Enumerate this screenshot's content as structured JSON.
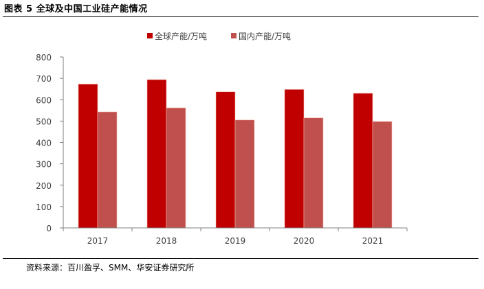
{
  "figure_title": "图表 5  全球及中国工业硅产能情况",
  "source_note": "资料来源：百川盈孚、SMM、华安证券研究所",
  "colors": {
    "series_global": "#c00000",
    "series_china": "#c0504d",
    "axis": "#7f7f7f",
    "text": "#404040"
  },
  "chart_data": {
    "type": "bar",
    "categories": [
      "2017",
      "2018",
      "2019",
      "2020",
      "2021"
    ],
    "series": [
      {
        "name": "全球产能/万吨",
        "values": [
          673,
          694,
          637,
          648,
          630
        ]
      },
      {
        "name": "国内产能/万吨",
        "values": [
          543,
          562,
          505,
          515,
          498
        ]
      }
    ],
    "yticks": [
      "0",
      "100",
      "200",
      "300",
      "400",
      "500",
      "600",
      "700",
      "800"
    ],
    "ylim": [
      0,
      800
    ],
    "grid": false,
    "legend": "top-center"
  }
}
